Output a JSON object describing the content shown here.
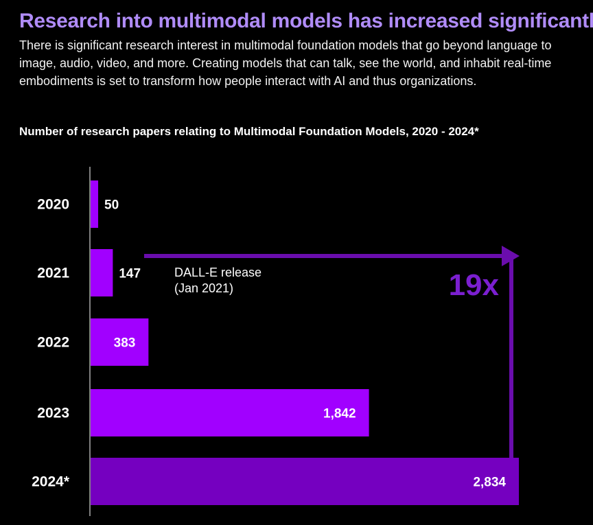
{
  "header": {
    "title": "Research into multimodal models has increased significantly",
    "intro": "There is significant research interest in multimodal foundation models that go beyond language to image, audio, video, and more. Creating models that can talk, see the world, and inhabit real-time embodiments is set to transform how people interact with AI and thus organizations."
  },
  "colors": {
    "headline": "#b08cf8",
    "bar": "#a100ff",
    "bar_last": "#7500c0",
    "arrow": "#6a0dad"
  },
  "chart_data": {
    "type": "bar",
    "orientation": "horizontal",
    "title": "Number of research papers relating to Multimodal Foundation Models, 2020 - 2024*",
    "categories": [
      "2020",
      "2021",
      "2022",
      "2023",
      "2024*"
    ],
    "values": [
      50,
      147,
      383,
      1842,
      2834
    ],
    "value_labels": [
      "50",
      "147",
      "383",
      "1,842",
      "2,834"
    ],
    "xlim": [
      0,
      2834
    ],
    "grid": false,
    "annotations": {
      "event_line1": "DALL-E release",
      "event_line2": "(Jan 2021)",
      "multiplier": "19x"
    }
  }
}
